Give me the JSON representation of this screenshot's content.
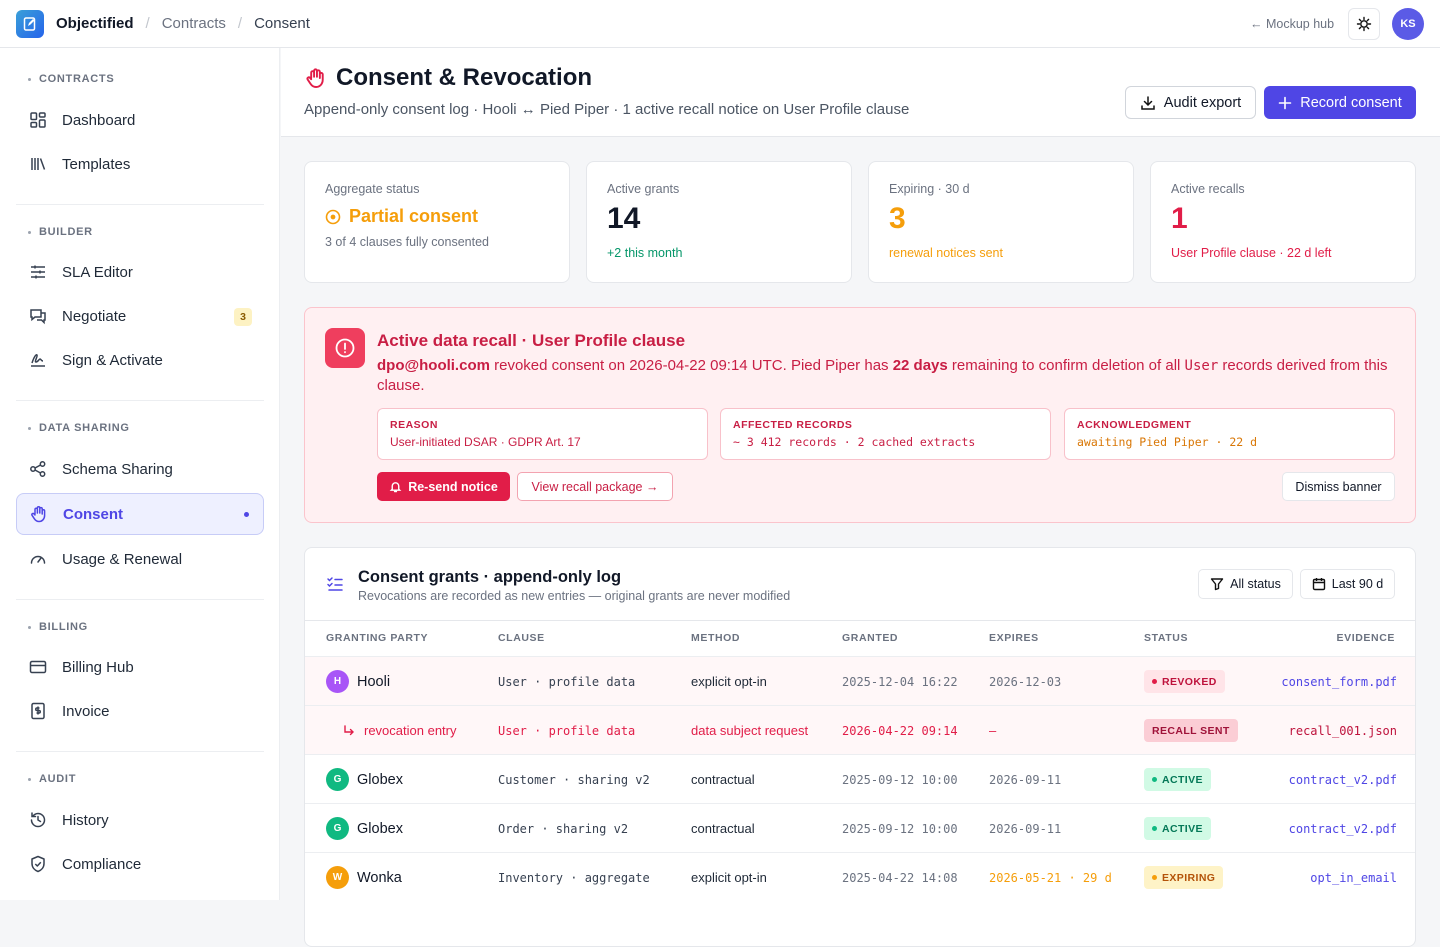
{
  "topbar": {
    "app": "Objectified",
    "crumbs": [
      "Contracts",
      "Consent"
    ],
    "separator": "/",
    "mockup_hub": "← Mockup hub",
    "theme_icon": "theme-toggle-icon",
    "avatar": "KS"
  },
  "sidebar": {
    "sections": [
      {
        "title": "CONTRACTS",
        "items": [
          {
            "label": "Dashboard",
            "icon": "grid-icon"
          },
          {
            "label": "Templates",
            "icon": "library-icon"
          }
        ]
      },
      {
        "title": "BUILDER",
        "items": [
          {
            "label": "SLA Editor",
            "icon": "sliders-icon"
          },
          {
            "label": "Negotiate",
            "icon": "chat-icon",
            "badge": "3"
          },
          {
            "label": "Sign & Activate",
            "icon": "signature-icon"
          }
        ]
      },
      {
        "title": "DATA SHARING",
        "items": [
          {
            "label": "Schema Sharing",
            "icon": "share-icon"
          },
          {
            "label": "Consent",
            "icon": "hand-icon",
            "active": true
          },
          {
            "label": "Usage & Renewal",
            "icon": "gauge-icon"
          }
        ]
      },
      {
        "title": "BILLING",
        "items": [
          {
            "label": "Billing Hub",
            "icon": "card-icon"
          },
          {
            "label": "Invoice",
            "icon": "invoice-icon"
          }
        ]
      },
      {
        "title": "AUDIT",
        "items": [
          {
            "label": "History",
            "icon": "history-icon"
          },
          {
            "label": "Compliance",
            "icon": "shield-check-icon"
          }
        ]
      }
    ]
  },
  "header": {
    "title": "Consent & Revocation",
    "subtitle": "Append-only consent log · Hooli ↔ Pied Piper · 1 active recall notice on User Profile clause",
    "audit_export": "Audit export",
    "record_consent": "Record consent"
  },
  "kpis": [
    {
      "label": "Aggregate status",
      "value": "Partial consent",
      "sub": "3 of 4 clauses fully consented",
      "color": "#f59e0b"
    },
    {
      "label": "Active grants",
      "value": "14",
      "sub": "+2 this month",
      "color": "#059669"
    },
    {
      "label": "Expiring · 30 d",
      "value": "3",
      "sub": "renewal notices sent",
      "color": "#f59e0b"
    },
    {
      "label": "Active recalls",
      "value": "1",
      "sub": "User Profile clause · 22 d left",
      "color": "#e11d48"
    }
  ],
  "recall": {
    "title": "Active data recall · User Profile clause",
    "text_email": "dpo@hooli.com",
    "text_mid": " revoked consent on 2026-04-22 09:14 UTC. Pied Piper has ",
    "text_days": "22  days",
    "text_mid2": " remaining to confirm deletion of all ",
    "text_code": "User",
    "text_end": " records derived from this clause.",
    "boxes": [
      {
        "key": "REASON",
        "value": "User-initiated DSAR · GDPR Art. 17"
      },
      {
        "key": "AFFECTED RECORDS",
        "value": "~ 3 412 records · 2 cached extracts"
      },
      {
        "key": "ACKNOWLEDGMENT",
        "value": "awaiting Pied Piper · 22 d"
      }
    ],
    "resend": "Re-send notice",
    "view_package": "View recall package →",
    "dismiss": "Dismiss banner"
  },
  "log": {
    "title": "Consent grants · append-only log",
    "subtitle": "Revocations are recorded as new entries — original grants are never modified",
    "filter_status": "All status",
    "filter_range": "Last 90 d",
    "columns": [
      "GRANTING PARTY",
      "CLAUSE",
      "METHOD",
      "GRANTED",
      "EXPIRES",
      "STATUS",
      "EVIDENCE"
    ],
    "rows": [
      {
        "party": "Hooli",
        "initial": "H",
        "avatar_color": "#a855f7",
        "clause": "User · profile data",
        "method": "explicit opt-in",
        "granted": "2025-12-04 16:22",
        "expires": "2026-12-03",
        "status": "REVOKED",
        "evidence": "consent_form.pdf"
      },
      {
        "party": "revocation entry",
        "clause": "User · profile data",
        "method": "data subject request",
        "granted": "2026-04-22 09:14",
        "expires": "—",
        "status": "RECALL SENT",
        "evidence": "recall_001.json"
      },
      {
        "party": "Globex",
        "initial": "G",
        "avatar_color": "#10b981",
        "clause": "Customer · sharing v2",
        "method": "contractual",
        "granted": "2025-09-12 10:00",
        "expires": "2026-09-11",
        "status": "ACTIVE",
        "evidence": "contract_v2.pdf"
      },
      {
        "party": "Globex",
        "initial": "G",
        "avatar_color": "#10b981",
        "clause": "Order · sharing v2",
        "method": "contractual",
        "granted": "2025-09-12 10:00",
        "expires": "2026-09-11",
        "status": "ACTIVE",
        "evidence": "contract_v2.pdf"
      },
      {
        "party": "Wonka",
        "initial": "W",
        "avatar_color": "#f59e0b",
        "clause": "Inventory · aggregate",
        "method": "explicit opt-in",
        "granted": "2025-04-22 14:08",
        "expires": "2026-05-21 · 29 d",
        "status": "EXPIRING",
        "evidence": "opt_in_email"
      }
    ]
  }
}
